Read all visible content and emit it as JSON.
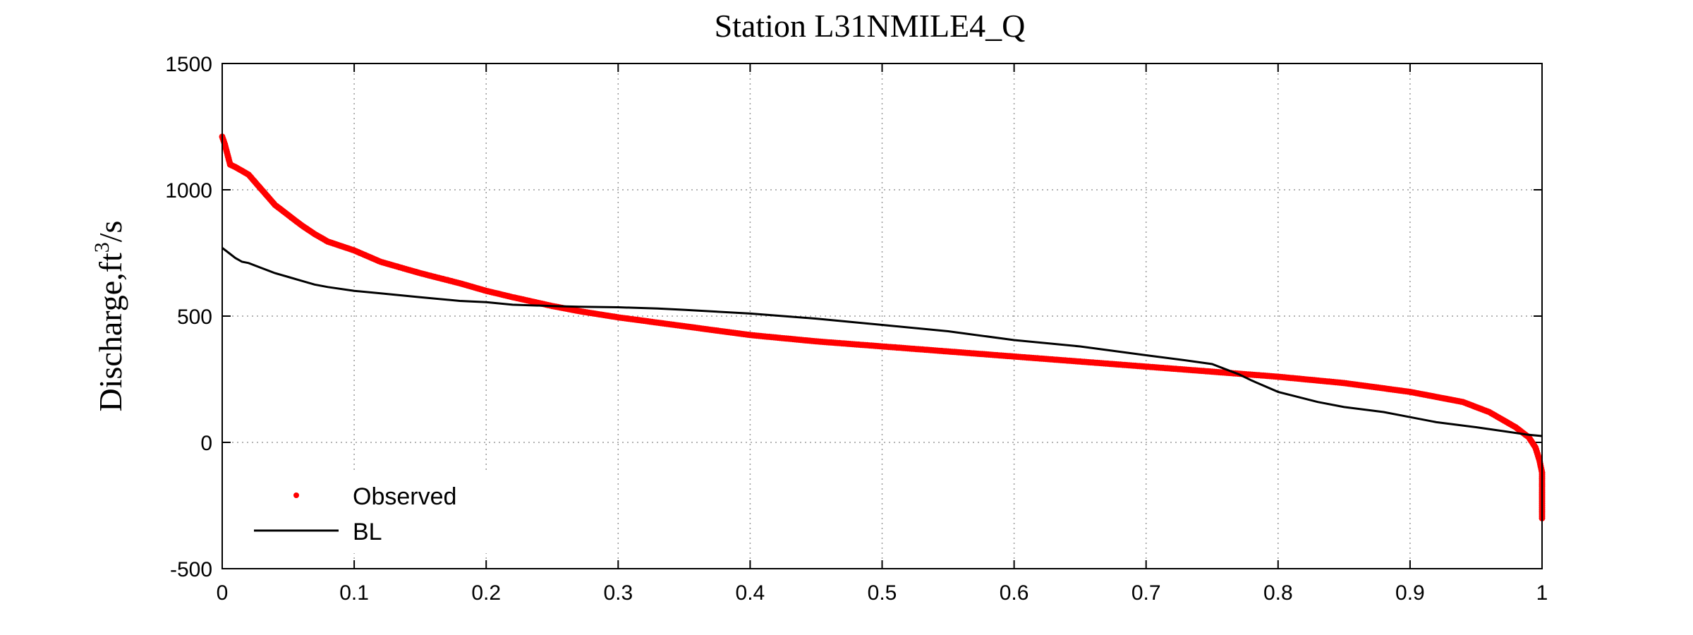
{
  "chart_data": {
    "type": "scatter",
    "title": "Station L31NMILE4_Q",
    "xlabel": "",
    "ylabel_main": "Discharge,ft",
    "ylabel_sup": "3",
    "ylabel_tail": "/s",
    "xlim": [
      0,
      1
    ],
    "ylim": [
      -500,
      1500
    ],
    "xticks": [
      0,
      0.1,
      0.2,
      0.3,
      0.4,
      0.5,
      0.6,
      0.7,
      0.8,
      0.9,
      1
    ],
    "xtick_labels": [
      "0",
      "0.1",
      "0.2",
      "0.3",
      "0.4",
      "0.5",
      "0.6",
      "0.7",
      "0.8",
      "0.9",
      "1"
    ],
    "yticks": [
      -500,
      0,
      500,
      1000,
      1500
    ],
    "ytick_labels": [
      "-500",
      "0",
      "500",
      "1000",
      "1500"
    ],
    "grid": true,
    "legend_position": "lower-left",
    "series": [
      {
        "name": "Observed",
        "style": "markers",
        "color": "#ff0000",
        "x": [
          0,
          0.002,
          0.004,
          0.006,
          0.01,
          0.015,
          0.02,
          0.025,
          0.03,
          0.035,
          0.04,
          0.05,
          0.06,
          0.07,
          0.08,
          0.1,
          0.12,
          0.15,
          0.18,
          0.2,
          0.22,
          0.25,
          0.27,
          0.3,
          0.35,
          0.4,
          0.45,
          0.5,
          0.55,
          0.6,
          0.65,
          0.7,
          0.75,
          0.8,
          0.85,
          0.9,
          0.92,
          0.94,
          0.95,
          0.96,
          0.97,
          0.98,
          0.99,
          0.995,
          0.998,
          1.0,
          1.0,
          1.0
        ],
        "y": [
          1210,
          1180,
          1140,
          1100,
          1090,
          1075,
          1060,
          1030,
          1000,
          970,
          940,
          900,
          860,
          825,
          795,
          760,
          715,
          670,
          630,
          600,
          575,
          540,
          520,
          495,
          460,
          425,
          400,
          380,
          360,
          340,
          320,
          300,
          280,
          260,
          235,
          200,
          180,
          160,
          140,
          120,
          90,
          60,
          20,
          -20,
          -70,
          -120,
          -200,
          -300
        ]
      },
      {
        "name": "BL",
        "style": "line",
        "color": "#000000",
        "x": [
          0,
          0.005,
          0.01,
          0.015,
          0.02,
          0.03,
          0.04,
          0.05,
          0.06,
          0.07,
          0.08,
          0.1,
          0.12,
          0.15,
          0.18,
          0.2,
          0.22,
          0.25,
          0.27,
          0.3,
          0.33,
          0.35,
          0.4,
          0.45,
          0.5,
          0.55,
          0.6,
          0.65,
          0.7,
          0.73,
          0.75,
          0.76,
          0.77,
          0.78,
          0.8,
          0.83,
          0.85,
          0.88,
          0.9,
          0.92,
          0.95,
          0.97,
          0.99,
          1.0
        ],
        "y": [
          770,
          750,
          730,
          715,
          710,
          690,
          670,
          655,
          640,
          625,
          615,
          600,
          590,
          575,
          560,
          555,
          545,
          540,
          537,
          535,
          530,
          525,
          510,
          490,
          465,
          440,
          405,
          380,
          345,
          325,
          310,
          290,
          270,
          245,
          200,
          160,
          140,
          120,
          100,
          80,
          60,
          45,
          30,
          25
        ]
      }
    ]
  }
}
